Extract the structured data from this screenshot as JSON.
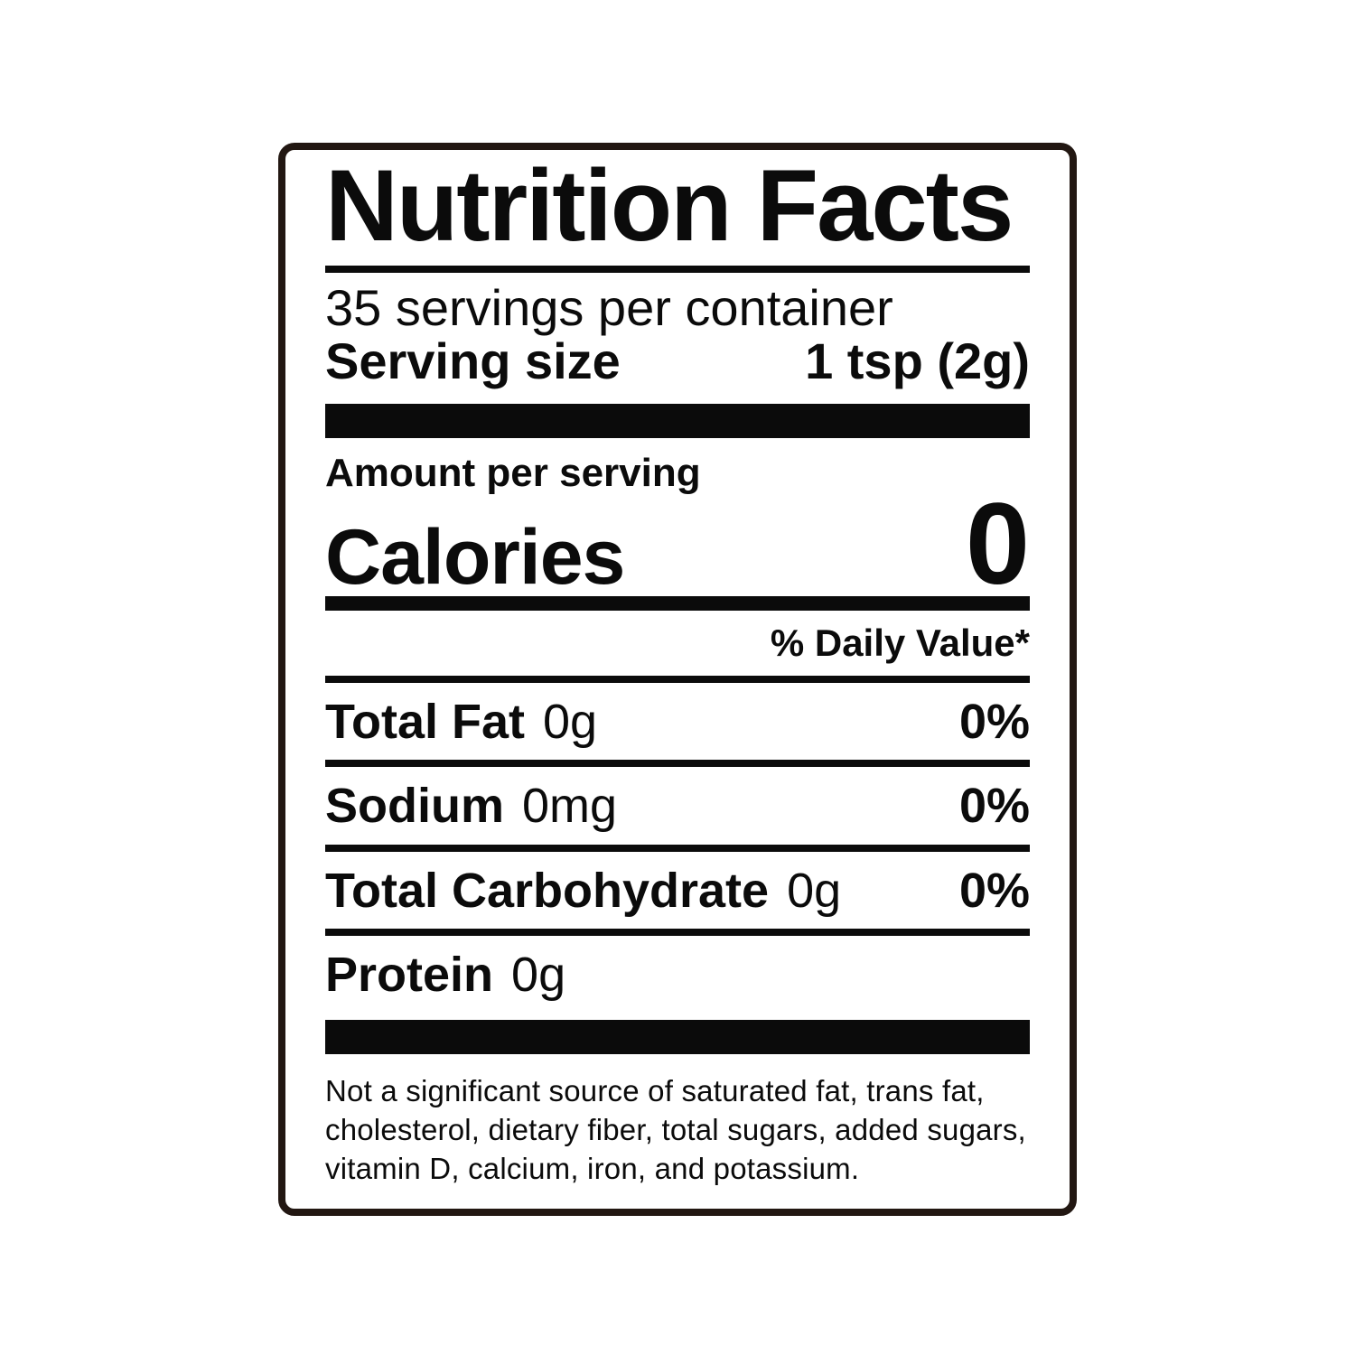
{
  "label": {
    "title": "Nutrition Facts",
    "servings_per_container": "35 servings per container",
    "serving_size": {
      "label": "Serving size",
      "value": "1 tsp (2g)"
    },
    "amount_per_serving": "Amount per serving",
    "calories": {
      "label": "Calories",
      "value": "0"
    },
    "daily_value_header": "% Daily Value*",
    "nutrients": [
      {
        "name": "Total Fat",
        "amount": "0g",
        "dv": "0%"
      },
      {
        "name": "Sodium",
        "amount": "0mg",
        "dv": "0%"
      },
      {
        "name": "Total Carbohydrate",
        "amount": "0g",
        "dv": "0%"
      },
      {
        "name": "Protein",
        "amount": "0g",
        "dv": ""
      }
    ],
    "footnote": "Not a significant source of saturated fat, trans fat, cholesterol, dietary fiber, total sugars, added sugars, vitamin D, calcium, iron, and potassium."
  },
  "colors": {
    "background": "#ffffff",
    "label_background": "#ffffff",
    "border": "#221712",
    "text": "#0b0b0b"
  }
}
